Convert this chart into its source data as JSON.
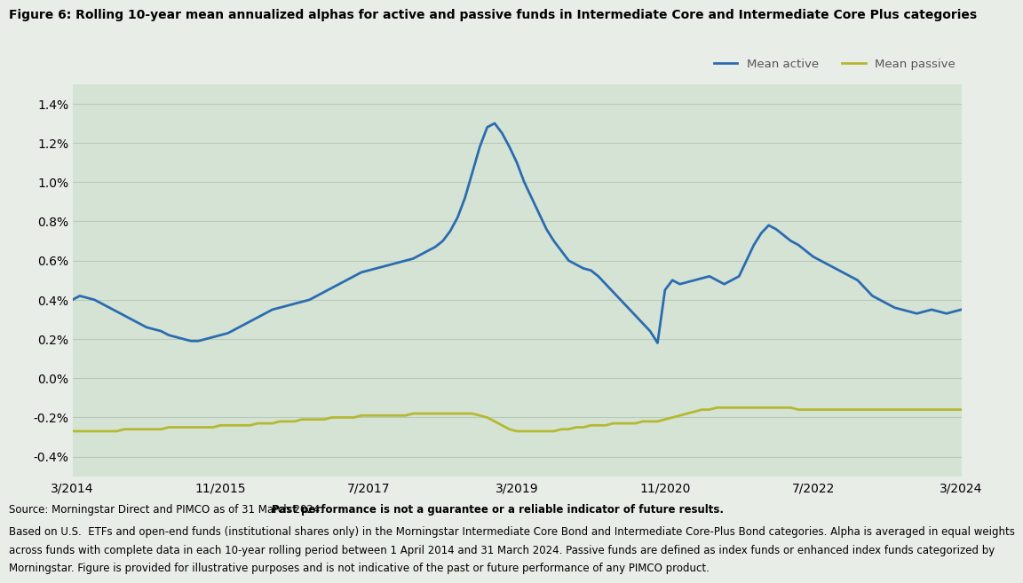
{
  "title": "Figure 6: Rolling 10-year mean annualized alphas for active and passive funds in Intermediate Core and Intermediate Core Plus categories",
  "background_color": "#e8ede8",
  "plot_bg_color": "#d5e3d5",
  "active_color": "#2b6cb0",
  "passive_color": "#b5b832",
  "grid_color": "#b8cab8",
  "ylim_min": -0.5,
  "ylim_max": 1.5,
  "ytick_vals": [
    -0.4,
    -0.2,
    0.0,
    0.2,
    0.4,
    0.6,
    0.8,
    1.0,
    1.2,
    1.4
  ],
  "xtick_labels": [
    "3/2014",
    "11/2015",
    "7/2017",
    "3/2019",
    "11/2020",
    "7/2022",
    "3/2024"
  ],
  "legend_labels": [
    "Mean active",
    "Mean passive"
  ],
  "source_prefix": "Source: Morningstar Direct and PIMCO as of 31 March 2024. ",
  "source_bold": "Past performance is not a guarantee or a reliable indicator of future results.",
  "footnote_line1": "Based on U.S.  ETFs and open-end funds (institutional shares only) in the Morningstar Intermediate Core Bond and Intermediate Core-Plus Bond categories. Alpha is averaged in equal weights",
  "footnote_line2": "across funds with complete data in each 10-year rolling period between 1 April 2014 and 31 March 2024. Passive funds are defined as index funds or enhanced index funds categorized by",
  "footnote_line3": "Morningstar. Figure is provided for illustrative purposes and is not indicative of the past or future performance of any PIMCO product.",
  "active_data": [
    0.4,
    0.42,
    0.41,
    0.4,
    0.38,
    0.36,
    0.34,
    0.32,
    0.3,
    0.28,
    0.26,
    0.25,
    0.24,
    0.22,
    0.21,
    0.2,
    0.19,
    0.19,
    0.2,
    0.21,
    0.22,
    0.23,
    0.25,
    0.27,
    0.29,
    0.31,
    0.33,
    0.35,
    0.36,
    0.37,
    0.38,
    0.39,
    0.4,
    0.42,
    0.44,
    0.46,
    0.48,
    0.5,
    0.52,
    0.54,
    0.55,
    0.56,
    0.57,
    0.58,
    0.59,
    0.6,
    0.61,
    0.63,
    0.65,
    0.67,
    0.7,
    0.75,
    0.82,
    0.92,
    1.05,
    1.18,
    1.28,
    1.3,
    1.25,
    1.18,
    1.1,
    1.0,
    0.92,
    0.84,
    0.76,
    0.7,
    0.65,
    0.6,
    0.58,
    0.56,
    0.55,
    0.52,
    0.48,
    0.44,
    0.4,
    0.36,
    0.32,
    0.28,
    0.24,
    0.18,
    0.45,
    0.5,
    0.48,
    0.49,
    0.5,
    0.51,
    0.52,
    0.5,
    0.48,
    0.5,
    0.52,
    0.6,
    0.68,
    0.74,
    0.78,
    0.76,
    0.73,
    0.7,
    0.68,
    0.65,
    0.62,
    0.6,
    0.58,
    0.56,
    0.54,
    0.52,
    0.5,
    0.46,
    0.42,
    0.4,
    0.38,
    0.36,
    0.35,
    0.34,
    0.33,
    0.34,
    0.35,
    0.34,
    0.33,
    0.34,
    0.35
  ],
  "passive_data": [
    -0.27,
    -0.27,
    -0.27,
    -0.27,
    -0.27,
    -0.27,
    -0.27,
    -0.26,
    -0.26,
    -0.26,
    -0.26,
    -0.26,
    -0.26,
    -0.25,
    -0.25,
    -0.25,
    -0.25,
    -0.25,
    -0.25,
    -0.25,
    -0.24,
    -0.24,
    -0.24,
    -0.24,
    -0.24,
    -0.23,
    -0.23,
    -0.23,
    -0.22,
    -0.22,
    -0.22,
    -0.21,
    -0.21,
    -0.21,
    -0.21,
    -0.2,
    -0.2,
    -0.2,
    -0.2,
    -0.19,
    -0.19,
    -0.19,
    -0.19,
    -0.19,
    -0.19,
    -0.19,
    -0.18,
    -0.18,
    -0.18,
    -0.18,
    -0.18,
    -0.18,
    -0.18,
    -0.18,
    -0.18,
    -0.19,
    -0.2,
    -0.22,
    -0.24,
    -0.26,
    -0.27,
    -0.27,
    -0.27,
    -0.27,
    -0.27,
    -0.27,
    -0.26,
    -0.26,
    -0.25,
    -0.25,
    -0.24,
    -0.24,
    -0.24,
    -0.23,
    -0.23,
    -0.23,
    -0.23,
    -0.22,
    -0.22,
    -0.22,
    -0.21,
    -0.2,
    -0.19,
    -0.18,
    -0.17,
    -0.16,
    -0.16,
    -0.15,
    -0.15,
    -0.15,
    -0.15,
    -0.15,
    -0.15,
    -0.15,
    -0.15,
    -0.15,
    -0.15,
    -0.15,
    -0.16,
    -0.16,
    -0.16,
    -0.16,
    -0.16,
    -0.16,
    -0.16,
    -0.16,
    -0.16,
    -0.16,
    -0.16,
    -0.16,
    -0.16,
    -0.16,
    -0.16,
    -0.16,
    -0.16,
    -0.16,
    -0.16,
    -0.16,
    -0.16,
    -0.16,
    -0.16
  ]
}
